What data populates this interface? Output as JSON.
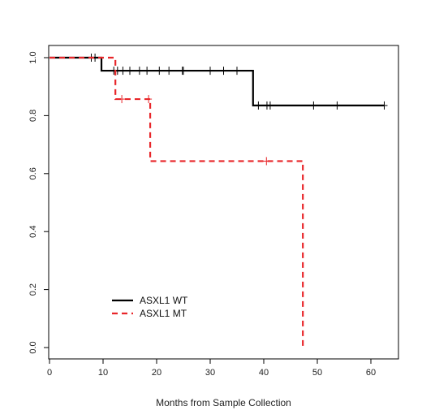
{
  "chart_data": {
    "type": "line",
    "subtype": "kaplan-meier",
    "title": "",
    "xlabel": "Months from Sample Collection",
    "ylabel": "",
    "xlim": [
      0,
      65
    ],
    "ylim": [
      0,
      1.04
    ],
    "xticks": [
      0,
      10,
      20,
      30,
      40,
      50,
      60
    ],
    "yticks": [
      0.0,
      0.2,
      0.4,
      0.6,
      0.8,
      1.0
    ],
    "ytick_labels": [
      "0.0",
      "0.2",
      "0.4",
      "0.6",
      "0.8",
      "1.0"
    ],
    "grid": false,
    "legend_position": "bottom-left",
    "series": [
      {
        "name": "ASXL1 WT",
        "color": "#000000",
        "style": "solid",
        "steps": [
          [
            0,
            1.0
          ],
          [
            9.7,
            0.955
          ],
          [
            38,
            0.835
          ],
          [
            62.5,
            0.835
          ]
        ],
        "censored": [
          [
            7.8,
            1.0
          ],
          [
            8.5,
            1.0
          ],
          [
            12,
            0.955
          ],
          [
            12.7,
            0.955
          ],
          [
            13.7,
            0.955
          ],
          [
            15,
            0.955
          ],
          [
            16.8,
            0.955
          ],
          [
            18.2,
            0.955
          ],
          [
            20.5,
            0.955
          ],
          [
            22.3,
            0.955
          ],
          [
            24.8,
            0.955
          ],
          [
            25,
            0.955
          ],
          [
            30,
            0.955
          ],
          [
            32.5,
            0.955
          ],
          [
            35,
            0.955
          ],
          [
            39,
            0.835
          ],
          [
            40.6,
            0.835
          ],
          [
            41.2,
            0.835
          ],
          [
            49.3,
            0.835
          ],
          [
            53.7,
            0.835
          ],
          [
            62.5,
            0.835
          ]
        ]
      },
      {
        "name": "ASXL1 MT",
        "color": "#e8262a",
        "style": "dashed",
        "steps": [
          [
            0,
            1.0
          ],
          [
            12.3,
            0.857
          ],
          [
            18.8,
            0.643
          ],
          [
            47.3,
            0.0
          ]
        ],
        "censored": [
          [
            13.5,
            0.857
          ],
          [
            18.5,
            0.857
          ],
          [
            40.5,
            0.643
          ]
        ]
      }
    ]
  }
}
